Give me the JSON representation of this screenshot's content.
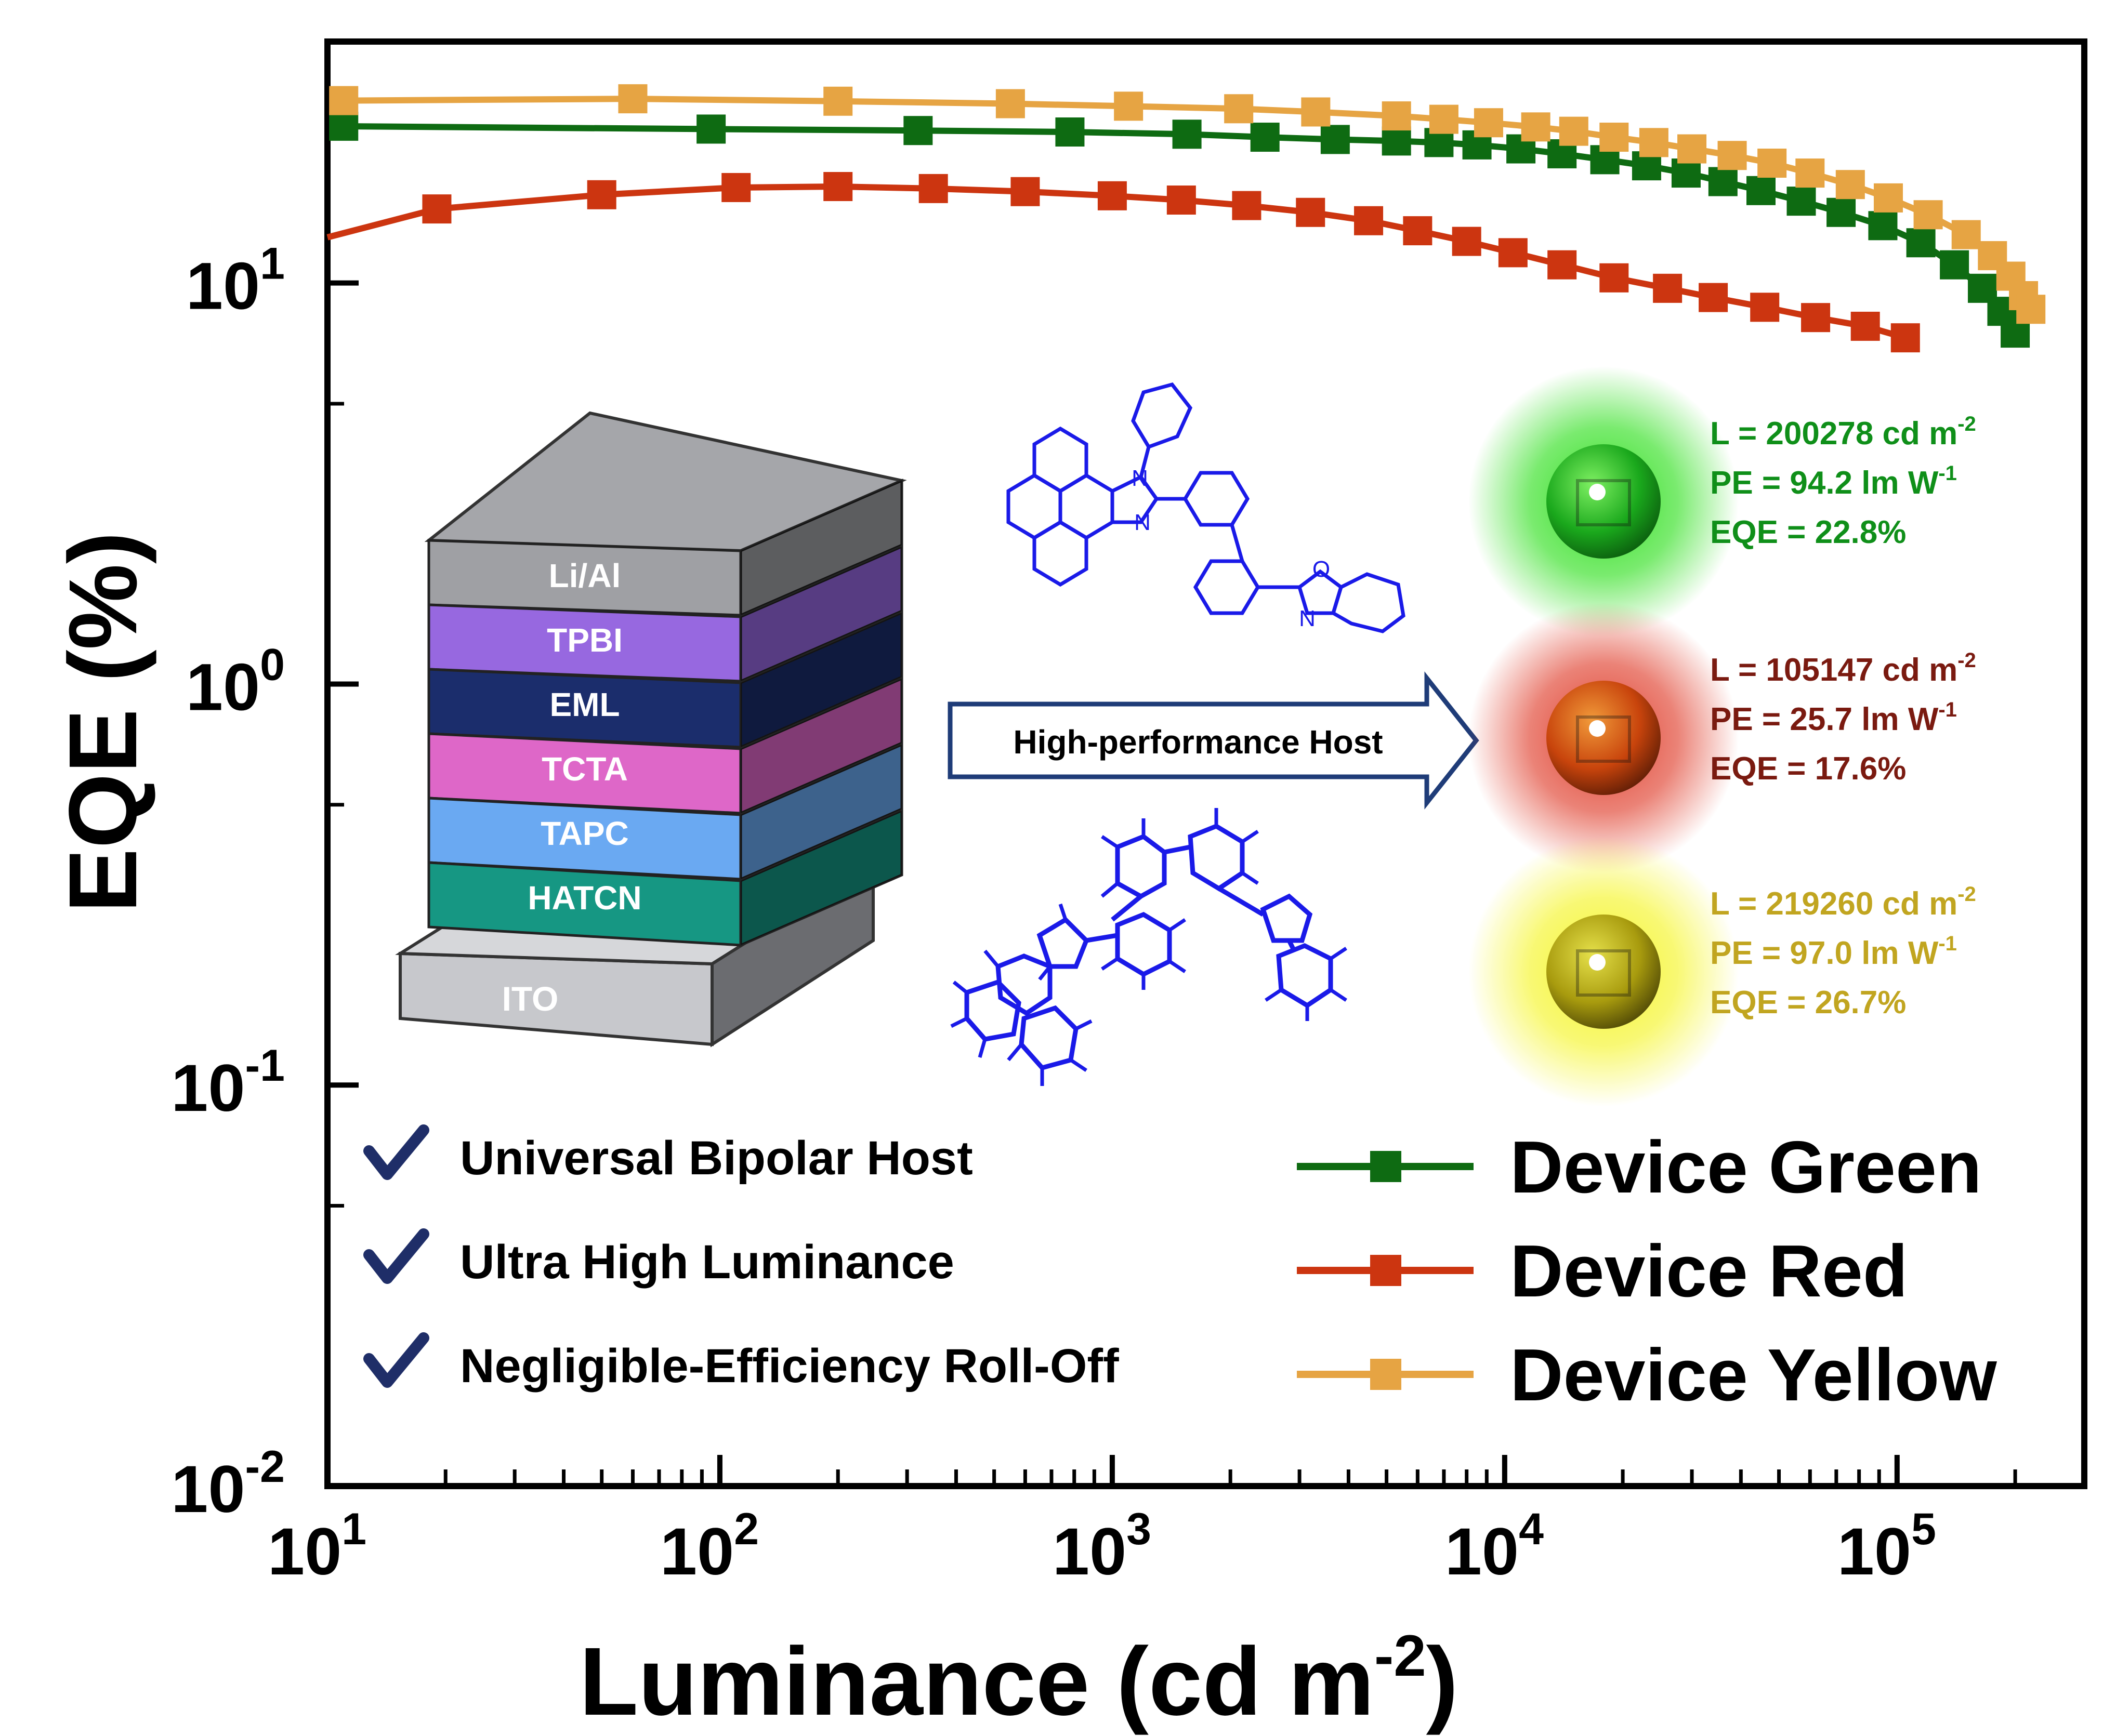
{
  "chart_data": {
    "type": "line",
    "xscale": "log",
    "yscale": "log",
    "xlabel": "Luminance (cd m",
    "xlabel_sup": "-2",
    "xlabel_close": ")",
    "ylabel": "EQE (%)",
    "xlim": [
      10,
      300000
    ],
    "ylim": [
      0.01,
      40
    ],
    "x_ticks": [
      {
        "value": 10,
        "base": "10",
        "exp": "1"
      },
      {
        "value": 100,
        "base": "10",
        "exp": "2"
      },
      {
        "value": 1000,
        "base": "10",
        "exp": "3"
      },
      {
        "value": 10000,
        "base": "10",
        "exp": "4"
      },
      {
        "value": 100000,
        "base": "10",
        "exp": "5"
      }
    ],
    "y_ticks": [
      {
        "value": 0.01,
        "base": "10",
        "exp": "-2"
      },
      {
        "value": 0.1,
        "base": "10",
        "exp": "-1"
      },
      {
        "value": 1,
        "base": "10",
        "exp": "0"
      },
      {
        "value": 10,
        "base": "10",
        "exp": "1"
      }
    ],
    "series": [
      {
        "name": "Device Green",
        "color": "#0e6b12",
        "x": [
          11,
          95,
          320,
          780,
          1550,
          2450,
          3700,
          5300,
          6800,
          8500,
          11000,
          14000,
          18000,
          23000,
          29000,
          36000,
          45000,
          57000,
          72000,
          92000,
          115000,
          140000,
          165000,
          185000,
          200000
        ],
        "y": [
          24.6,
          24.2,
          24.0,
          23.8,
          23.5,
          23.1,
          22.8,
          22.6,
          22.4,
          22.1,
          21.6,
          21.0,
          20.3,
          19.6,
          18.8,
          17.9,
          17.0,
          16.0,
          15.0,
          13.9,
          12.6,
          11.1,
          9.7,
          8.5,
          7.5
        ]
      },
      {
        "name": "Device Red",
        "color": "#cc3510",
        "x": [
          10,
          19,
          50,
          110,
          200,
          350,
          600,
          1000,
          1500,
          2200,
          3200,
          4500,
          6000,
          8000,
          10500,
          14000,
          19000,
          26000,
          34000,
          46000,
          62000,
          83000,
          105000
        ],
        "y": [
          13.0,
          15.3,
          16.6,
          17.3,
          17.4,
          17.2,
          16.9,
          16.5,
          16.1,
          15.6,
          15.0,
          14.3,
          13.5,
          12.7,
          11.9,
          11.1,
          10.3,
          9.7,
          9.2,
          8.7,
          8.2,
          7.8,
          7.3
        ]
      },
      {
        "name": "Device Yellow",
        "color": "#e6a443",
        "x": [
          11,
          60,
          200,
          550,
          1100,
          2100,
          3300,
          5300,
          7000,
          9100,
          12000,
          15000,
          19000,
          24000,
          30000,
          38000,
          48000,
          60000,
          76000,
          95000,
          120000,
          150000,
          175000,
          195000,
          210000,
          219260
        ],
        "y": [
          28.5,
          28.8,
          28.4,
          28.0,
          27.6,
          27.2,
          26.7,
          26.1,
          25.6,
          25.1,
          24.5,
          23.9,
          23.1,
          22.4,
          21.6,
          20.8,
          19.9,
          18.8,
          17.6,
          16.3,
          14.8,
          13.2,
          11.7,
          10.4,
          9.3,
          8.6
        ]
      }
    ]
  },
  "legend": [
    {
      "label": "Device Green",
      "color": "#0e6b12"
    },
    {
      "label": "Device Red",
      "color": "#cc3510"
    },
    {
      "label": "Device Yellow",
      "color": "#e6a443"
    }
  ],
  "features": [
    "Universal Bipolar Host",
    "Ultra High Luminance",
    "Negligible-Efficiency Roll-Off"
  ],
  "device_stack": {
    "layers": [
      {
        "label": "Li/Al",
        "color": "#9fa0a4"
      },
      {
        "label": "TPBI",
        "color": "#9768e0"
      },
      {
        "label": "EML",
        "color": "#1b2d6c"
      },
      {
        "label": "TCTA",
        "color": "#de67c8"
      },
      {
        "label": "TAPC",
        "color": "#6aa9f2"
      },
      {
        "label": "HATCN",
        "color": "#169783"
      }
    ],
    "substrate": "ITO"
  },
  "arrow_label": "High-performance Host",
  "molecule_atoms": {
    "n1": "N",
    "n2": "N",
    "o": "O",
    "n3": "N"
  },
  "device_results": [
    {
      "color": "#0f8f19",
      "glow": "#33e022",
      "core": "#1aa81c",
      "l_prefix": "L = 200278 cd m",
      "l_sup": "-2",
      "pe_prefix": "PE = 94.2 lm W",
      "pe_sup": "-1",
      "eqe": "EQE = 22.8%"
    },
    {
      "color": "#7a1a10",
      "glow": "#e0402e",
      "core": "#c8440c",
      "l_prefix": "L = 105147 cd m",
      "l_sup": "-2",
      "pe_prefix": "PE = 25.7 lm W",
      "pe_sup": "-1",
      "eqe": "EQE = 17.6%"
    },
    {
      "color": "#c1a520",
      "glow": "#f5f52a",
      "core": "#a89b0e",
      "l_prefix": "L = 219260 cd m",
      "l_sup": "-2",
      "pe_prefix": "PE = 97.0 lm W",
      "pe_sup": "-1",
      "eqe": "EQE = 26.7%"
    }
  ]
}
